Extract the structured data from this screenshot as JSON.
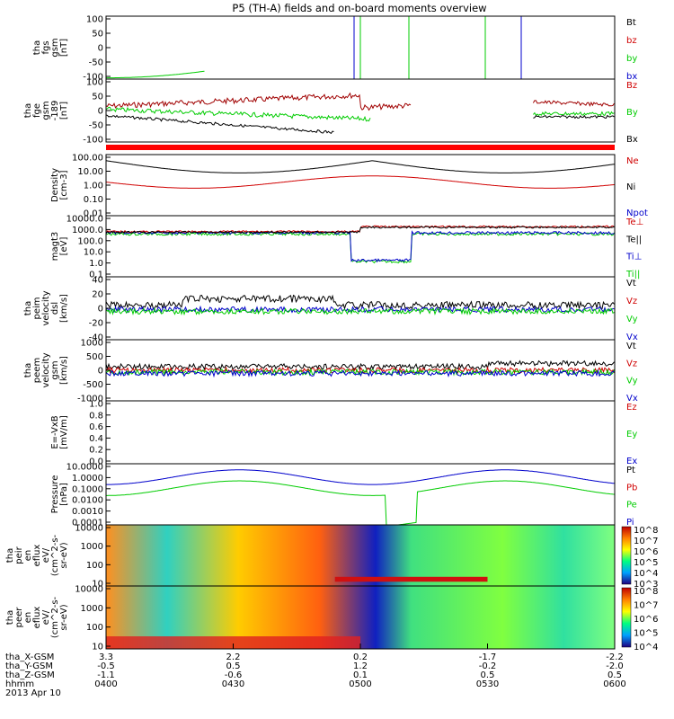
{
  "title": "P5 (TH-A) fields and on-board moments overview",
  "colors": {
    "black": "#000000",
    "red": "#d00000",
    "green": "#00cc00",
    "blue": "#0000cc",
    "darkred": "#8b0000"
  },
  "chart_data": [
    {
      "type": "line",
      "panel": "fgs",
      "ylabel": [
        "tha",
        "fgs",
        "gsm",
        "[nT]"
      ],
      "ylim": [
        -100,
        100
      ],
      "yticks": [
        "100",
        "50",
        "0",
        "-50",
        "-100"
      ],
      "legend": [
        {
          "name": "Bt",
          "color": "#000000"
        },
        {
          "name": "bz",
          "color": "#d00000"
        },
        {
          "name": "by",
          "color": "#00cc00"
        },
        {
          "name": "bx",
          "color": "#0000cc"
        }
      ]
    },
    {
      "type": "line",
      "panel": "fge",
      "ylabel": [
        "tha",
        "fge",
        "gsm",
        "-189",
        "[nT]"
      ],
      "ylim": [
        -130,
        110
      ],
      "yticks": [
        "100",
        "50",
        "0",
        "-50",
        "-100"
      ],
      "legend": [
        {
          "name": "Bz",
          "color": "#d00000"
        },
        {
          "name": "By",
          "color": "#00cc00"
        },
        {
          "name": "Bx",
          "color": "#000000"
        }
      ]
    },
    {
      "type": "line",
      "panel": "density",
      "ylabel": [
        "Density",
        "[cm-3]"
      ],
      "log": true,
      "ylim": [
        0.01,
        100
      ],
      "yticks": [
        "100.00",
        "10.00",
        "1.00",
        "0.10",
        "0.01"
      ],
      "legend": [
        {
          "name": "Ne",
          "color": "#d00000"
        },
        {
          "name": "Ni",
          "color": "#000000"
        },
        {
          "name": "Npot",
          "color": "#0000cc"
        }
      ]
    },
    {
      "type": "line",
      "panel": "temperature",
      "ylabel": [
        "magt3",
        "[eV]"
      ],
      "log": true,
      "ylim": [
        0.1,
        10000
      ],
      "yticks": [
        "10000.0",
        "1000.0",
        "100.0",
        "10.0",
        "1.0",
        "0.1"
      ],
      "legend": [
        {
          "name": "Te⊥",
          "color": "#d00000"
        },
        {
          "name": "Te||",
          "color": "#000000"
        },
        {
          "name": "Ti⊥",
          "color": "#0000cc"
        },
        {
          "name": "Ti||",
          "color": "#00cc00"
        }
      ]
    },
    {
      "type": "line",
      "panel": "peim_velocity",
      "ylabel": [
        "tha",
        "peim",
        "velocity",
        "dsl",
        "[km/s]"
      ],
      "ylim": [
        -40,
        40
      ],
      "yticks": [
        "40",
        "20",
        "0",
        "-20",
        "-40"
      ],
      "legend": [
        {
          "name": "Vt",
          "color": "#000000"
        },
        {
          "name": "Vz",
          "color": "#d00000"
        },
        {
          "name": "Vy",
          "color": "#00cc00"
        },
        {
          "name": "Vx",
          "color": "#0000cc"
        }
      ]
    },
    {
      "type": "line",
      "panel": "peem_velocity",
      "ylabel": [
        "tha",
        "peem",
        "velocity",
        "gsm",
        "[km/s]"
      ],
      "ylim": [
        -1000,
        1000
      ],
      "yticks": [
        "1000",
        "500",
        "0",
        "-500",
        "-1000"
      ],
      "legend": [
        {
          "name": "Vt",
          "color": "#000000"
        },
        {
          "name": "Vz",
          "color": "#d00000"
        },
        {
          "name": "Vy",
          "color": "#00cc00"
        },
        {
          "name": "Vx",
          "color": "#0000cc"
        }
      ]
    },
    {
      "type": "line",
      "panel": "efield",
      "ylabel": [
        "E=-VxB",
        "[mV/m]"
      ],
      "ylim": [
        0,
        1
      ],
      "yticks": [
        "1.0",
        "0.8",
        "0.6",
        "0.4",
        "0.2",
        "0.0"
      ],
      "legend": [
        {
          "name": "Ez",
          "color": "#d00000"
        },
        {
          "name": "Ey",
          "color": "#00cc00"
        },
        {
          "name": "Ex",
          "color": "#0000cc"
        }
      ]
    },
    {
      "type": "line",
      "panel": "pressure",
      "ylabel": [
        "Pressure",
        "[nPa]"
      ],
      "log": true,
      "ylim": [
        0.0001,
        10
      ],
      "yticks": [
        "10.0000",
        "1.0000",
        "0.1000",
        "0.0100",
        "0.0010",
        "0.0001"
      ],
      "legend": [
        {
          "name": "Pt",
          "color": "#000000"
        },
        {
          "name": "Pb",
          "color": "#d00000"
        },
        {
          "name": "Pe",
          "color": "#00cc00"
        },
        {
          "name": "Pi",
          "color": "#0000cc"
        }
      ]
    },
    {
      "type": "heatmap",
      "panel": "peir",
      "ylabel": [
        "tha",
        "peir",
        "en",
        "eflux",
        "eV/",
        "(cm^2-s-",
        "sr-eV)"
      ],
      "log": true,
      "ylim": [
        5,
        25000
      ],
      "yticks": [
        "10000",
        "1000",
        "100",
        "10"
      ],
      "colorbar_ticks": [
        "10^8",
        "10^7",
        "10^6",
        "10^5",
        "10^4",
        "10^3"
      ]
    },
    {
      "type": "heatmap",
      "panel": "peer",
      "ylabel": [
        "tha",
        "peer",
        "en",
        "eflux",
        "eV/",
        "(cm^2-s-",
        "sr-eV)"
      ],
      "log": true,
      "ylim": [
        5,
        25000
      ],
      "yticks": [
        "10000",
        "1000",
        "100",
        "10"
      ],
      "colorbar_ticks": [
        "10^8",
        "10^7",
        "10^6",
        "10^5",
        "10^4"
      ]
    }
  ],
  "x_axis": {
    "labels": [
      "tha_X-GSM",
      "tha_Y-GSM",
      "tha_Z-GSM",
      "hhmm",
      "2013 Apr 10"
    ],
    "rows": [
      [
        "3.3",
        "2.2",
        "0.2",
        "-1.7",
        "-2.2"
      ],
      [
        "-0.5",
        "0.5",
        "1.2",
        "-0.2",
        "-2.0"
      ],
      [
        "-1.1",
        "-0.6",
        "0.1",
        "0.5",
        "0.5"
      ],
      [
        "0400",
        "0430",
        "0500",
        "0530",
        "0600"
      ]
    ]
  }
}
